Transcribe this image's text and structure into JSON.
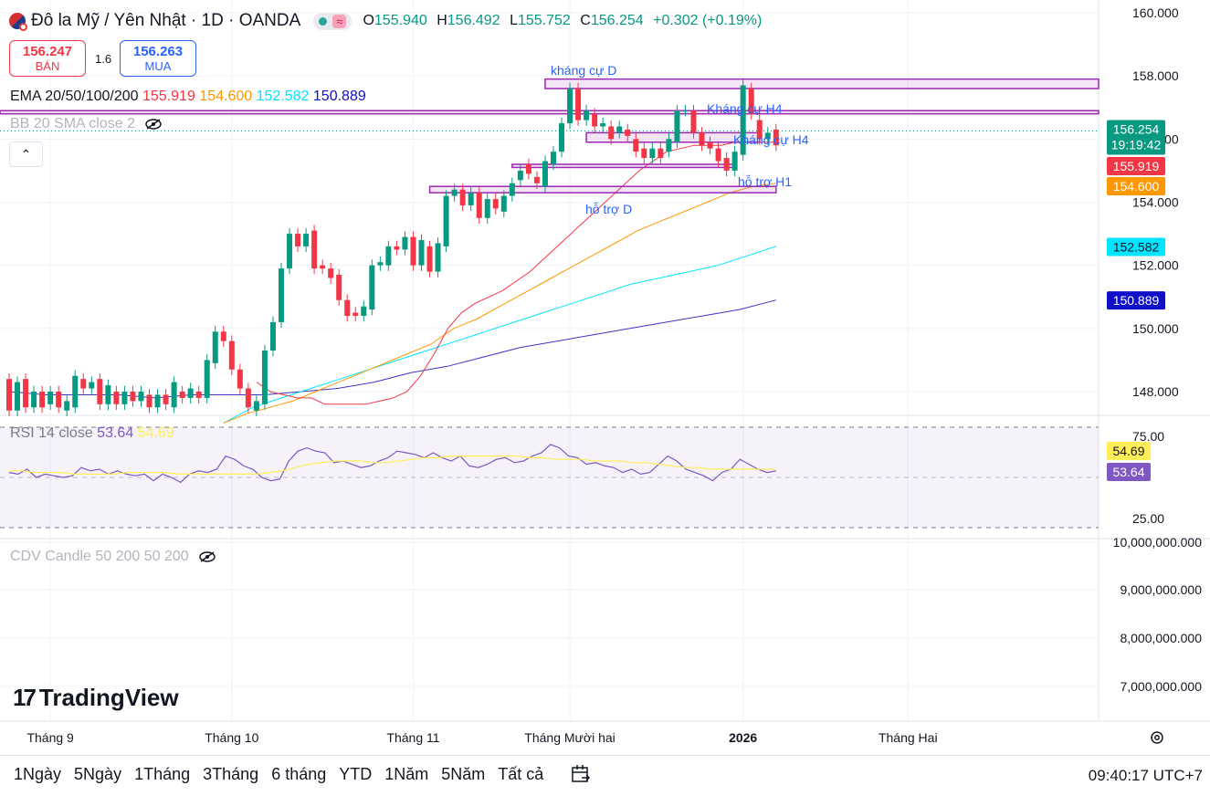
{
  "header": {
    "title": "Đô la Mỹ / Yên Nhật · 1D · OANDA",
    "ohlc": [
      {
        "k": "O",
        "v": "155.940"
      },
      {
        "k": "H",
        "v": "156.492"
      },
      {
        "k": "L",
        "v": "155.752"
      },
      {
        "k": "C",
        "v": "156.254"
      }
    ],
    "change": "+0.302 (+0.19%)"
  },
  "trade": {
    "sell_price": "156.247",
    "sell_label": "BÁN",
    "spread": "1.6",
    "buy_price": "156.263",
    "buy_label": "MUA"
  },
  "legends": {
    "ema_name": "EMA 20/50/100/200",
    "ema_values": [
      "155.919",
      "154.600",
      "152.582",
      "150.889"
    ],
    "bb": "BB 20 SMA close 2",
    "rsi_name": "RSI 14 close",
    "rsi_values": [
      "53.64",
      "54.69"
    ],
    "cdv": "CDV Candle 50 200 50 200"
  },
  "colors": {
    "up": "#089981",
    "down": "#f23645",
    "ema20": "#f23645",
    "ema50": "#ff9800",
    "ema100": "#00e5ff",
    "ema200": "#3f33c8",
    "zone": "#9c27b0",
    "rsi": "#7e57c2",
    "rsi_ma": "#ffee58"
  },
  "chart_data": [
    {
      "type": "candlestick",
      "x_axis_labels": [
        {
          "label": "Tháng 9",
          "index": 5
        },
        {
          "label": "Tháng 10",
          "index": 27
        },
        {
          "label": "Tháng 11",
          "index": 49
        },
        {
          "label": "Tháng Mười hai",
          "index": 68
        },
        {
          "label": "2026",
          "index": 89
        },
        {
          "label": "Tháng Hai",
          "index": 109
        }
      ],
      "y_ticks": [
        "160.000",
        "158.000",
        "156.000",
        "154.000",
        "152.000",
        "150.000",
        "148.000"
      ],
      "ylim": [
        147.25,
        160.0
      ],
      "price_badges": [
        {
          "label": "156.254",
          "sub": "19:19:42",
          "value": 156.254,
          "color": "#089981"
        },
        {
          "label": "155.919",
          "value": 155.919,
          "color": "#f23645"
        },
        {
          "label": "154.600",
          "value": 154.6,
          "color": "#ff9800"
        },
        {
          "label": "152.582",
          "value": 152.582,
          "color": "#00e5ff"
        },
        {
          "label": "150.889",
          "value": 150.889,
          "color": "#1010c8"
        }
      ],
      "candles": [
        [
          148.4,
          147.4
        ],
        [
          147.4,
          148.3
        ],
        [
          148.4,
          147.5
        ],
        [
          147.5,
          148.0
        ],
        [
          148.0,
          147.5
        ],
        [
          147.6,
          148.0
        ],
        [
          148.0,
          147.5
        ],
        [
          147.4,
          147.7
        ],
        [
          147.5,
          148.5
        ],
        [
          148.4,
          148.1
        ],
        [
          148.1,
          148.3
        ],
        [
          148.4,
          147.6
        ],
        [
          147.6,
          148.2
        ],
        [
          148.0,
          147.6
        ],
        [
          147.6,
          148.0
        ],
        [
          148.0,
          147.7
        ],
        [
          147.7,
          148.0
        ],
        [
          147.9,
          147.5
        ],
        [
          147.5,
          147.9
        ],
        [
          147.9,
          147.6
        ],
        [
          147.5,
          148.3
        ],
        [
          148.0,
          147.8
        ],
        [
          147.8,
          148.1
        ],
        [
          148.0,
          147.8
        ],
        [
          147.8,
          149.0
        ],
        [
          148.9,
          149.9
        ],
        [
          149.9,
          149.6
        ],
        [
          149.6,
          148.7
        ],
        [
          148.7,
          148.1
        ],
        [
          148.1,
          147.5
        ],
        [
          147.4,
          147.7
        ],
        [
          147.6,
          149.3
        ],
        [
          149.3,
          150.2
        ],
        [
          150.2,
          151.9
        ],
        [
          151.9,
          153.0
        ],
        [
          153.0,
          152.6
        ],
        [
          152.6,
          153.0
        ],
        [
          153.1,
          151.9
        ],
        [
          152.0,
          151.9
        ],
        [
          151.9,
          151.6
        ],
        [
          151.7,
          150.9
        ],
        [
          150.9,
          150.4
        ],
        [
          150.5,
          150.4
        ],
        [
          150.4,
          150.7
        ],
        [
          150.6,
          152.0
        ],
        [
          152.0,
          152.1
        ],
        [
          152.0,
          152.6
        ],
        [
          152.6,
          152.5
        ],
        [
          152.5,
          152.9
        ],
        [
          152.9,
          152.0
        ],
        [
          152.0,
          152.8
        ],
        [
          152.6,
          151.8
        ],
        [
          151.8,
          152.7
        ],
        [
          152.6,
          154.2
        ],
        [
          154.2,
          154.4
        ],
        [
          154.4,
          153.9
        ],
        [
          153.9,
          154.3
        ],
        [
          154.3,
          153.5
        ],
        [
          153.5,
          154.1
        ],
        [
          154.1,
          153.8
        ],
        [
          153.7,
          154.2
        ],
        [
          154.2,
          154.6
        ],
        [
          154.7,
          155.0
        ],
        [
          155.2,
          154.9
        ],
        [
          154.8,
          154.6
        ],
        [
          154.5,
          155.3
        ],
        [
          155.2,
          155.6
        ],
        [
          155.6,
          156.5
        ],
        [
          156.5,
          157.6
        ],
        [
          157.6,
          156.6
        ],
        [
          156.6,
          156.9
        ],
        [
          156.8,
          156.4
        ],
        [
          156.4,
          156.5
        ],
        [
          156.4,
          156.0
        ],
        [
          156.2,
          156.4
        ],
        [
          156.3,
          156.1
        ],
        [
          156.0,
          155.6
        ],
        [
          155.7,
          155.4
        ],
        [
          155.4,
          155.7
        ],
        [
          155.7,
          155.4
        ],
        [
          155.6,
          156.0
        ],
        [
          155.9,
          156.9
        ],
        [
          156.9,
          156.9
        ],
        [
          156.9,
          156.2
        ],
        [
          156.2,
          155.8
        ],
        [
          155.9,
          155.7
        ],
        [
          155.7,
          155.3
        ],
        [
          155.4,
          155.0
        ],
        [
          155.0,
          155.6
        ],
        [
          155.5,
          157.7
        ],
        [
          157.6,
          156.8
        ],
        [
          156.6,
          156.0
        ],
        [
          156.0,
          156.2
        ],
        [
          156.3,
          155.8
        ]
      ],
      "ema20": [
        148.3,
        148.0,
        147.9,
        147.8,
        147.8,
        147.6,
        147.6,
        147.6,
        147.6,
        147.7,
        147.8,
        148.0,
        148.5,
        149.2,
        150.0,
        150.5,
        150.8,
        151.0,
        151.2,
        151.5,
        151.8,
        152.2,
        152.6,
        153.0,
        153.4,
        153.8,
        154.2,
        154.6,
        155.0,
        155.3,
        155.6,
        155.7,
        155.8,
        155.8,
        155.8,
        155.9,
        155.9,
        155.9,
        155.9
      ],
      "ema50": [
        147.0,
        147.3,
        147.5,
        147.7,
        148.0,
        148.3,
        148.6,
        148.9,
        149.2,
        149.5,
        150.0,
        150.3,
        150.7,
        151.1,
        151.5,
        151.9,
        152.3,
        152.7,
        153.1,
        153.4,
        153.7,
        154.0,
        154.3,
        154.5,
        154.6
      ],
      "ema100": [
        147.0,
        147.5,
        147.8,
        148.1,
        148.4,
        148.7,
        149.0,
        149.3,
        149.6,
        149.9,
        150.2,
        150.5,
        150.8,
        151.1,
        151.4,
        151.6,
        151.8,
        152.0,
        152.3,
        152.6
      ],
      "ema200": [
        148.0,
        147.9,
        147.9,
        147.9,
        147.8,
        147.9,
        147.9,
        147.9,
        148.0,
        148.1,
        148.3,
        148.6,
        148.8,
        149.1,
        149.4,
        149.6,
        149.8,
        150.0,
        150.2,
        150.4,
        150.6,
        150.9
      ],
      "zones": [
        {
          "label": "kháng cự D",
          "from_index": 65,
          "to_index": 113,
          "top": 157.9,
          "bottom": 157.6
        },
        {
          "label": "Kháng cự H4",
          "from_index": 70,
          "to_index": 91,
          "top": 156.2,
          "bottom": 155.9
        },
        {
          "label": "Kháng cự H4",
          "label_index": 86,
          "from_index": 0,
          "to_index": 113,
          "top": 156.9,
          "bottom": 156.8
        },
        {
          "label": "hỗ trợ H1",
          "from_index": 61,
          "to_index": 88,
          "top": 155.2,
          "bottom": 155.1
        },
        {
          "label": "hỗ trợ D",
          "from_index": 51,
          "to_index": 93,
          "top": 154.5,
          "bottom": 154.3
        }
      ]
    },
    {
      "type": "line",
      "name": "RSI 14 close",
      "y_ticks": [
        "75.00",
        "25.00"
      ],
      "ylim": [
        20,
        80
      ],
      "rsi": [
        53,
        52,
        55,
        50,
        52,
        51,
        50,
        51,
        56,
        54,
        55,
        52,
        54,
        52,
        51,
        52,
        48,
        52,
        50,
        47,
        52,
        54,
        53,
        55,
        63,
        61,
        57,
        55,
        50,
        48,
        49,
        60,
        66,
        68,
        66,
        65,
        59,
        60,
        58,
        56,
        57,
        60,
        62,
        66,
        65,
        64,
        62,
        65,
        62,
        60,
        63,
        57,
        56,
        58,
        61,
        62,
        59,
        60,
        63,
        65,
        70,
        68,
        63,
        62,
        58,
        59,
        57,
        56,
        53,
        55,
        52,
        53,
        58,
        63,
        60,
        55,
        53,
        51,
        48,
        53,
        55,
        61,
        58,
        55,
        53,
        54
      ],
      "rsi_ma": [
        54,
        54,
        53,
        53,
        53,
        52,
        52,
        52,
        52,
        53,
        53,
        53,
        53,
        52,
        52,
        52,
        52,
        52,
        52,
        52,
        53,
        54,
        56,
        58,
        59,
        60,
        60,
        60,
        59,
        59,
        60,
        61,
        62,
        62,
        63,
        63,
        63,
        63,
        63,
        63,
        62,
        62,
        61,
        61,
        61,
        60,
        60,
        60,
        59,
        59,
        58,
        57,
        56,
        56,
        55,
        55,
        55,
        55,
        55,
        55
      ]
    },
    {
      "type": "line",
      "name": "CDV Candle 50 200 50 200",
      "y_ticks": [
        "10,000,000.000",
        "9,000,000.000",
        "8,000,000.000",
        "7,000,000.000"
      ]
    }
  ],
  "brand": {
    "name": "TradingView"
  },
  "bottom": {
    "ranges": [
      "1Ngày",
      "5Ngày",
      "1Tháng",
      "3Tháng",
      "6 tháng",
      "YTD",
      "1Năm",
      "5Năm",
      "Tất cả"
    ],
    "clock": "09:40:17 UTC+7"
  }
}
